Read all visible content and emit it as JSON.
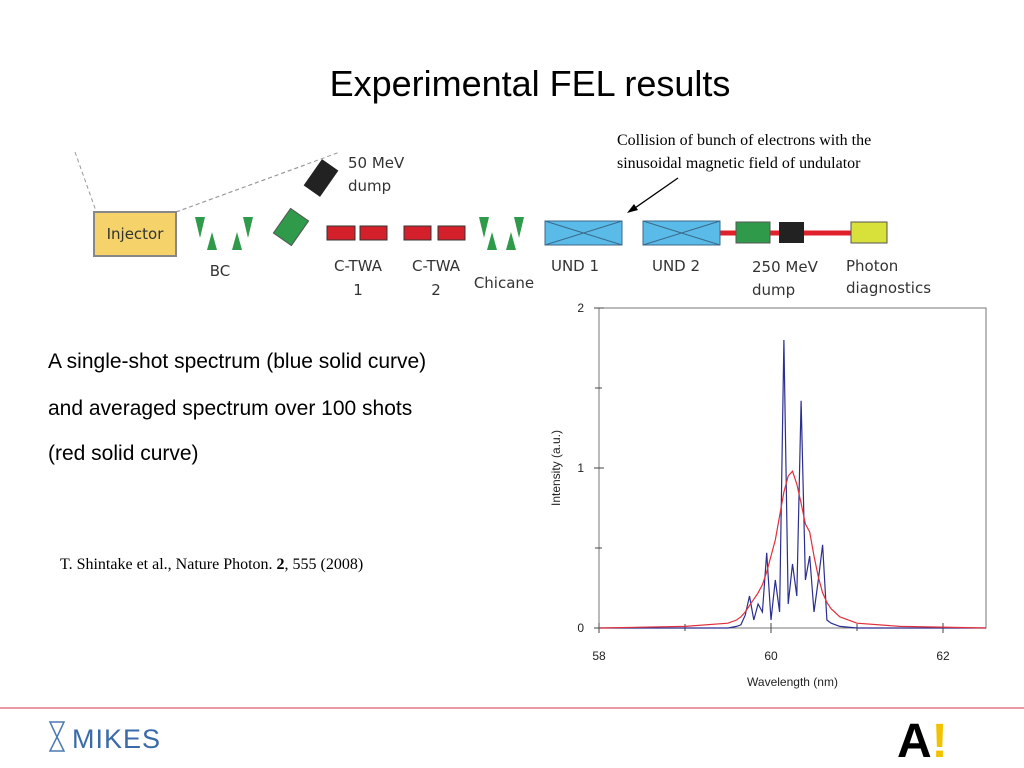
{
  "title": "Experimental FEL results",
  "annotation": [
    "Collision of bunch of electrons with the",
    "sinusoidal magnetic field of undulator"
  ],
  "diagram": {
    "injector": "Injector",
    "bc": "BC",
    "dump_50": [
      "50 MeV",
      "dump"
    ],
    "ctwa1": [
      "C-TWA",
      "1"
    ],
    "ctwa2": [
      "C-TWA",
      "2"
    ],
    "chicane": "Chicane",
    "und1": "UND 1",
    "und2": "UND 2",
    "dump_250": [
      "250 MeV",
      "dump"
    ],
    "photon": [
      "Photon",
      "diagnostics"
    ]
  },
  "description": [
    "A single-shot spectrum (blue solid curve)",
    "and averaged spectrum over 100 shots",
    "(red solid curve)"
  ],
  "reference": {
    "authors": "T. Shintake et al., Nature Photon. ",
    "volume": "2",
    "pages": ", 555 (2008)"
  },
  "footer": {
    "left_logo": "MIKES",
    "right_logo": [
      "A",
      "!"
    ]
  },
  "chart_data": {
    "type": "line",
    "x_label": "Wavelength (nm)",
    "y_label": "Intensity (a.u.)",
    "xlim": [
      58,
      62.5
    ],
    "xticks": [
      58,
      60,
      62
    ],
    "xminor": [
      59,
      61
    ],
    "ylim": [
      0,
      2
    ],
    "yticks": [
      0,
      1,
      2
    ],
    "yminor": [
      0.5,
      1.5
    ],
    "x": [
      58,
      59,
      59.5,
      59.6,
      59.65,
      59.7,
      59.75,
      59.8,
      59.85,
      59.9,
      59.95,
      60.0,
      60.05,
      60.1,
      60.15,
      60.2,
      60.25,
      60.3,
      60.35,
      60.4,
      60.45,
      60.5,
      60.55,
      60.6,
      60.65,
      60.7,
      60.8,
      61,
      61.5,
      62.5
    ],
    "series": [
      {
        "color": "#2b2f8f",
        "values": [
          0,
          0,
          0,
          0.01,
          0.02,
          0.08,
          0.2,
          0.05,
          0.15,
          0.1,
          0.47,
          0.05,
          0.3,
          0.1,
          1.8,
          0.15,
          0.4,
          0.2,
          1.42,
          0.3,
          0.45,
          0.1,
          0.3,
          0.52,
          0.05,
          0.03,
          0.01,
          0,
          0,
          0
        ]
      },
      {
        "color": "#e0303a",
        "values": [
          0,
          0.01,
          0.03,
          0.05,
          0.07,
          0.1,
          0.14,
          0.18,
          0.22,
          0.27,
          0.35,
          0.45,
          0.55,
          0.7,
          0.85,
          0.95,
          0.98,
          0.9,
          0.78,
          0.65,
          0.6,
          0.45,
          0.32,
          0.22,
          0.16,
          0.12,
          0.07,
          0.03,
          0.01,
          0
        ]
      }
    ]
  }
}
